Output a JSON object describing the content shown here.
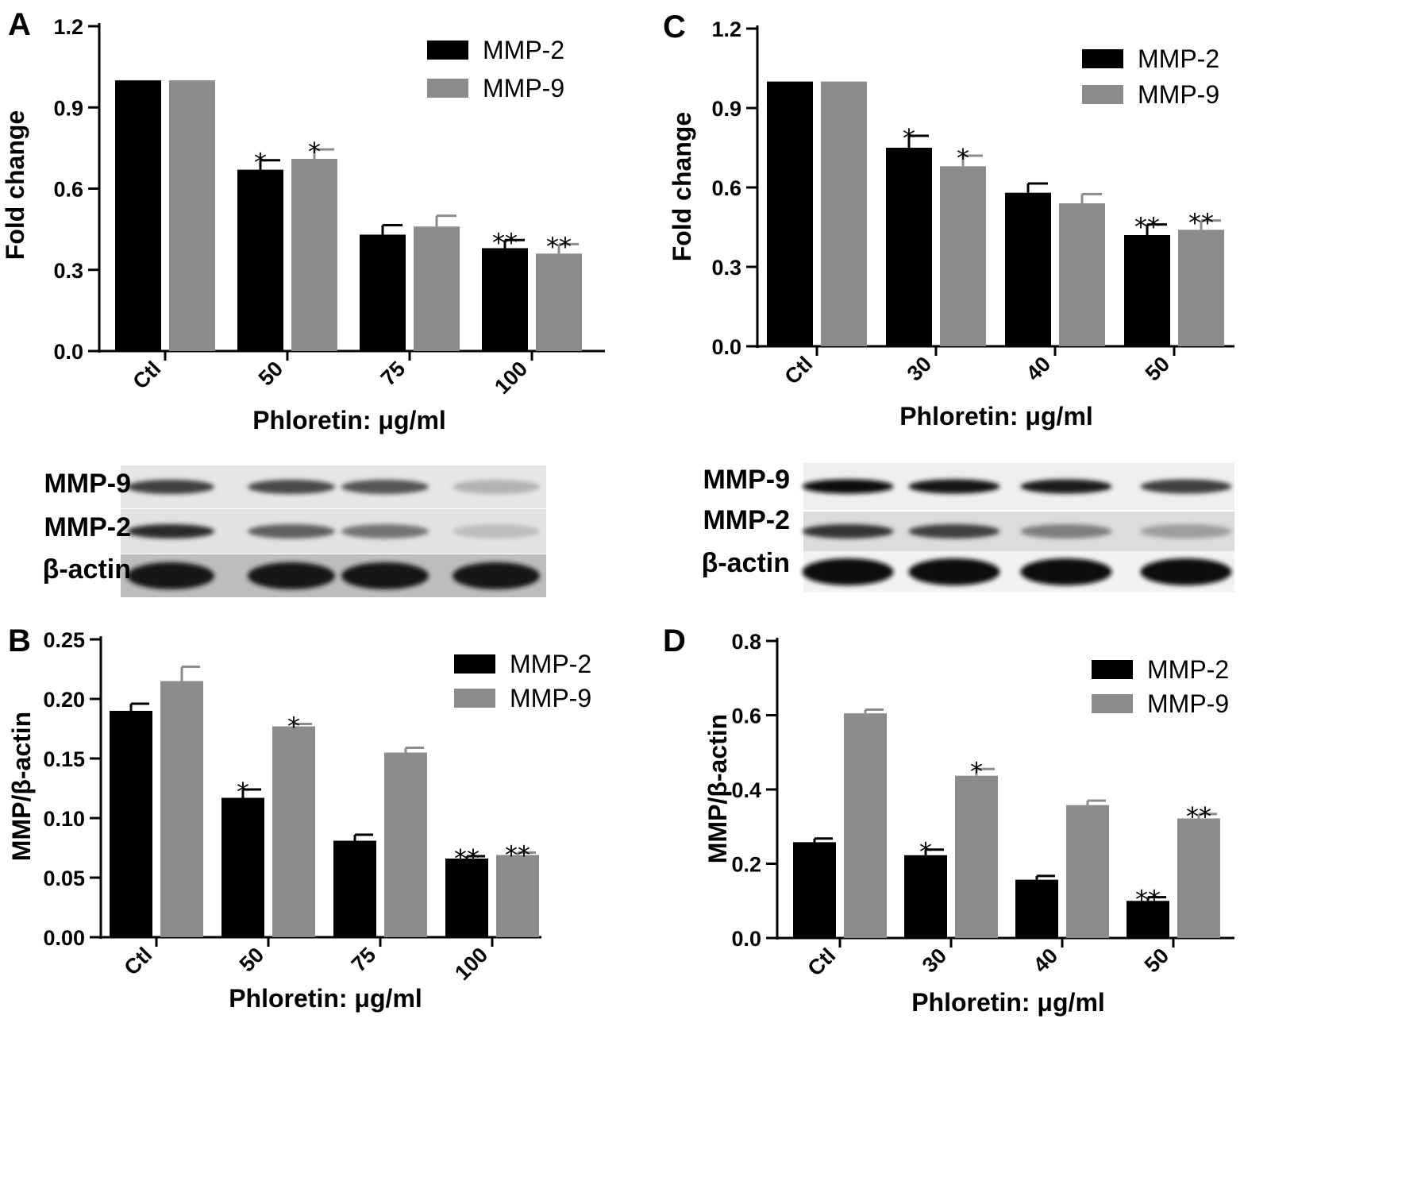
{
  "chart_data": [
    {
      "panel": "A",
      "type": "bar",
      "ylabel": "Fold change",
      "xlabel": "Phloretin: μg/ml",
      "categories": [
        "Ctl",
        "50",
        "75",
        "100"
      ],
      "ylim": [
        0,
        1.2
      ],
      "yticks": [
        0.0,
        0.3,
        0.6,
        0.9,
        1.2
      ],
      "tick_decimals": 1,
      "legend_position": "top-right",
      "series": [
        {
          "name": "MMP-2",
          "color": "#000000",
          "values": [
            1.0,
            0.67,
            0.43,
            0.38
          ],
          "errors": [
            0,
            0.035,
            0.035,
            0.03
          ],
          "annotations": [
            "",
            "*",
            "",
            "**"
          ]
        },
        {
          "name": "MMP-9",
          "color": "#8c8c8c",
          "values": [
            1.0,
            0.71,
            0.46,
            0.36
          ],
          "errors": [
            0,
            0.035,
            0.04,
            0.035
          ],
          "annotations": [
            "",
            "*",
            "",
            "**"
          ]
        }
      ]
    },
    {
      "panel": "B",
      "type": "bar",
      "ylabel": "MMP/β-actin",
      "xlabel": "Phloretin: μg/ml",
      "categories": [
        "Ctl",
        "50",
        "75",
        "100"
      ],
      "ylim": [
        0,
        0.25
      ],
      "yticks": [
        0.0,
        0.05,
        0.1,
        0.15,
        0.2,
        0.25
      ],
      "tick_decimals": 2,
      "legend_position": "top-right",
      "series": [
        {
          "name": "MMP-2",
          "color": "#000000",
          "values": [
            0.19,
            0.117,
            0.081,
            0.066
          ],
          "errors": [
            0.006,
            0.007,
            0.005,
            0.002
          ],
          "annotations": [
            "",
            "*",
            "",
            "**"
          ]
        },
        {
          "name": "MMP-9",
          "color": "#8c8c8c",
          "values": [
            0.215,
            0.177,
            0.155,
            0.069
          ],
          "errors": [
            0.012,
            0.002,
            0.004,
            0.002
          ],
          "annotations": [
            "",
            "*",
            "",
            "**"
          ]
        }
      ]
    },
    {
      "panel": "C",
      "type": "bar",
      "ylabel": "Fold change",
      "xlabel": "Phloretin: μg/ml",
      "categories": [
        "Ctl",
        "30",
        "40",
        "50"
      ],
      "ylim": [
        0,
        1.2
      ],
      "yticks": [
        0.0,
        0.3,
        0.6,
        0.9,
        1.2
      ],
      "tick_decimals": 1,
      "legend_position": "top-right",
      "series": [
        {
          "name": "MMP-2",
          "color": "#000000",
          "values": [
            1.0,
            0.75,
            0.58,
            0.42
          ],
          "errors": [
            0,
            0.045,
            0.035,
            0.04
          ],
          "annotations": [
            "",
            "*",
            "",
            "**"
          ]
        },
        {
          "name": "MMP-9",
          "color": "#8c8c8c",
          "values": [
            1.0,
            0.68,
            0.54,
            0.44
          ],
          "errors": [
            0,
            0.04,
            0.035,
            0.035
          ],
          "annotations": [
            "",
            "*",
            "",
            "**"
          ]
        }
      ]
    },
    {
      "panel": "D",
      "type": "bar",
      "ylabel": "MMP/β-actin",
      "xlabel": "Phloretin: μg/ml",
      "categories": [
        "Ctl",
        "30",
        "40",
        "50"
      ],
      "ylim": [
        0,
        0.8
      ],
      "yticks": [
        0.0,
        0.2,
        0.4,
        0.6,
        0.8
      ],
      "tick_decimals": 1,
      "legend_position": "top-right",
      "series": [
        {
          "name": "MMP-2",
          "color": "#000000",
          "values": [
            0.258,
            0.223,
            0.157,
            0.1
          ],
          "errors": [
            0.01,
            0.015,
            0.01,
            0.01
          ],
          "annotations": [
            "",
            "*",
            "",
            "**"
          ]
        },
        {
          "name": "MMP-9",
          "color": "#8c8c8c",
          "values": [
            0.605,
            0.437,
            0.358,
            0.322
          ],
          "errors": [
            0.01,
            0.018,
            0.012,
            0.012
          ],
          "annotations": [
            "",
            "*",
            "",
            "**"
          ]
        }
      ]
    }
  ],
  "blots": [
    {
      "panel": "A",
      "rows": [
        "MMP-9",
        "MMP-2",
        "β-actin"
      ],
      "band_intensity": [
        [
          0.75,
          0.7,
          0.65,
          0.2
        ],
        [
          0.85,
          0.6,
          0.5,
          0.15
        ],
        [
          0.95,
          0.95,
          0.95,
          0.95
        ]
      ]
    },
    {
      "panel": "C",
      "rows": [
        "MMP-9",
        "MMP-2",
        "β-actin"
      ],
      "band_intensity": [
        [
          1.0,
          0.95,
          0.9,
          0.75
        ],
        [
          0.8,
          0.75,
          0.45,
          0.3
        ],
        [
          1.0,
          1.0,
          1.0,
          1.0
        ]
      ]
    }
  ]
}
